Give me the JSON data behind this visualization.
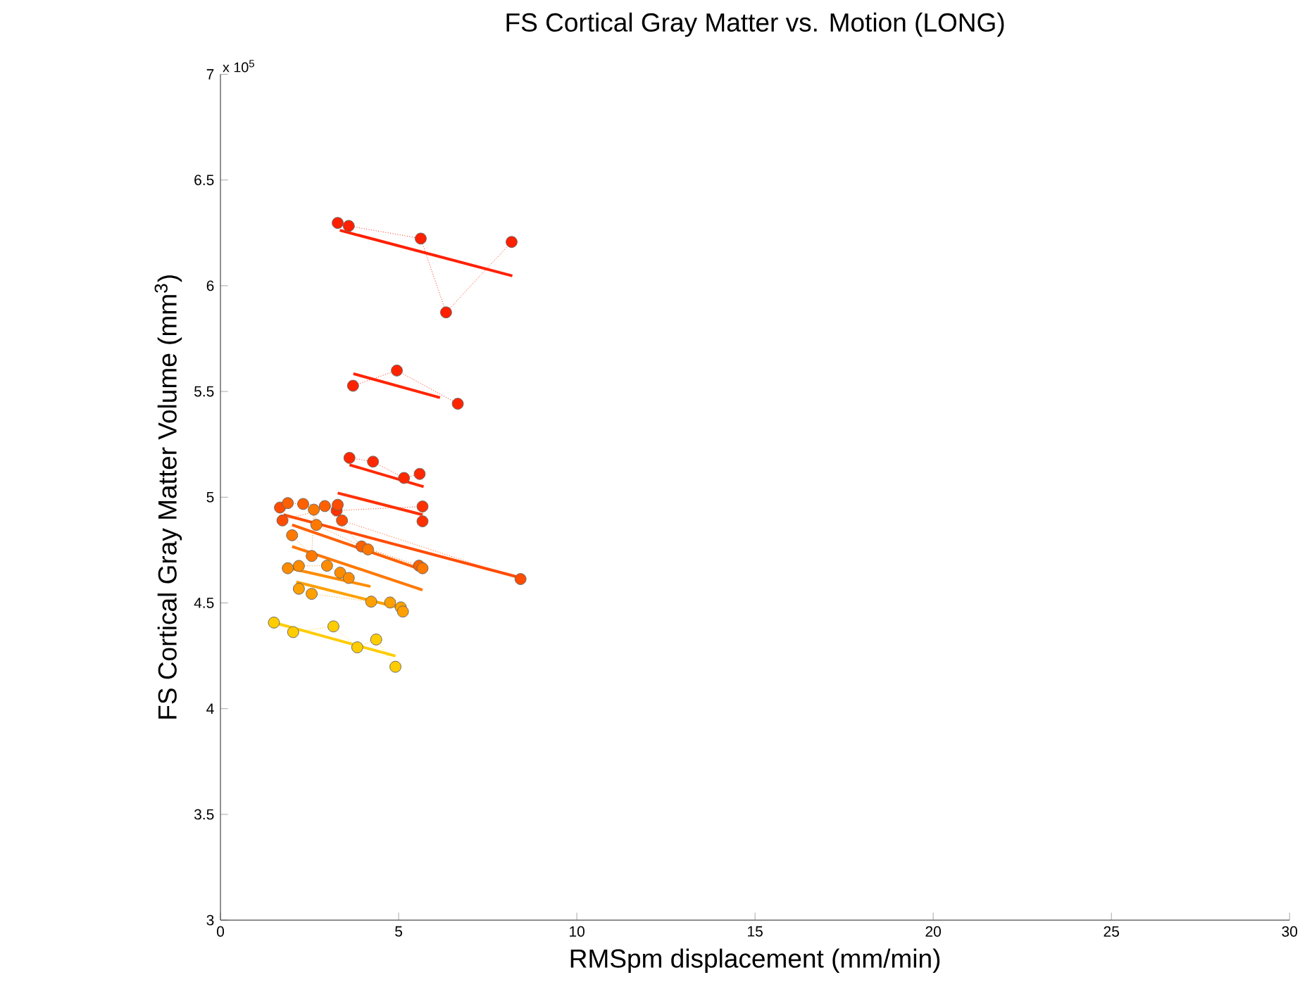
{
  "chart_data": {
    "type": "line",
    "title": "FS Cortical Gray Matter vs. Motion (LONG)",
    "xlabel": "RMSpm displacement (mm/min)",
    "ylabel": "FS Cortical Gray Matter Volume (mm$^{3}$)",
    "annotations": [
      "x 10$^{5}$"
    ],
    "xlim": [
      0,
      30
    ],
    "ylim": [
      3,
      7
    ],
    "xticks": [
      0,
      5,
      10,
      15,
      20,
      25,
      30
    ],
    "yticks": [
      3,
      3.5,
      4,
      4.5,
      5,
      5.5,
      6,
      6.5,
      7
    ],
    "grid": false,
    "series": [
      {
        "marker": "circle",
        "line_style": "dotted",
        "color": "#ff2000",
        "x": [
          3.29,
          3.6,
          5.62,
          6.33,
          8.17
        ],
        "values": [
          6.297,
          6.283,
          6.223,
          5.874,
          6.207
        ]
      },
      {
        "marker": "none",
        "line_style": "solid",
        "color": "#ff2000",
        "x": [
          3.35,
          8.19
        ],
        "values": [
          6.262,
          6.047
        ]
      },
      {
        "marker": "circle",
        "line_style": "dotted",
        "color": "#ff2400",
        "x": [
          3.72,
          4.95,
          6.66
        ],
        "values": [
          5.527,
          5.599,
          5.442
        ]
      },
      {
        "marker": "none",
        "line_style": "solid",
        "color": "#ff2400",
        "x": [
          3.73,
          6.16
        ],
        "values": [
          5.584,
          5.471
        ]
      },
      {
        "marker": "circle",
        "line_style": "dotted",
        "color": "#ff2800",
        "x": [
          3.62,
          4.28,
          5.15,
          5.59
        ],
        "values": [
          5.186,
          5.168,
          5.091,
          5.11
        ]
      },
      {
        "marker": "none",
        "line_style": "solid",
        "color": "#ff2800",
        "x": [
          3.62,
          5.7
        ],
        "values": [
          5.153,
          5.05
        ]
      },
      {
        "marker": "circle",
        "line_style": "dotted",
        "color": "#ff3000",
        "x": [
          3.26,
          5.67,
          5.67
        ],
        "values": [
          4.937,
          4.956,
          4.886
        ]
      },
      {
        "marker": "none",
        "line_style": "solid",
        "color": "#ff3000",
        "x": [
          3.29,
          5.67
        ],
        "values": [
          5.02,
          4.917
        ]
      },
      {
        "marker": "circle",
        "line_style": "dotted",
        "color": "#ff4c00",
        "x": [
          1.67,
          1.74,
          3.29,
          3.41,
          8.42
        ],
        "values": [
          4.951,
          4.89,
          4.964,
          4.89,
          4.613
        ]
      },
      {
        "marker": "none",
        "line_style": "solid",
        "color": "#ff4c00",
        "x": [
          1.77,
          8.42
        ],
        "values": [
          4.917,
          4.619
        ]
      },
      {
        "marker": "circle",
        "line_style": "dotted",
        "color": "#ff6000",
        "x": [
          1.89,
          2.32,
          2.93,
          3.96,
          5.57
        ],
        "values": [
          4.972,
          4.968,
          4.958,
          4.767,
          4.676
        ]
      },
      {
        "marker": "none",
        "line_style": "solid",
        "color": "#ff6000",
        "x": [
          2.01,
          5.61
        ],
        "values": [
          4.869,
          4.659
        ]
      },
      {
        "marker": "circle",
        "line_style": "dotted",
        "color": "#ff7800",
        "x": [
          2.01,
          2.56,
          2.62,
          2.69,
          4.14,
          5.67
        ],
        "values": [
          4.82,
          4.722,
          4.941,
          4.869,
          4.753,
          4.664
        ]
      },
      {
        "marker": "none",
        "line_style": "solid",
        "color": "#ff7800",
        "x": [
          2.01,
          5.67
        ],
        "values": [
          4.767,
          4.561
        ]
      },
      {
        "marker": "circle",
        "line_style": "dotted",
        "color": "#ff8c00",
        "x": [
          1.89,
          2.2,
          2.99,
          3.36,
          3.6
        ],
        "values": [
          4.664,
          4.675,
          4.676,
          4.643,
          4.618
        ]
      },
      {
        "marker": "none",
        "line_style": "solid",
        "color": "#ff8c00",
        "x": [
          1.95,
          4.21
        ],
        "values": [
          4.664,
          4.578
        ]
      },
      {
        "marker": "circle",
        "line_style": "dotted",
        "color": "#ffa000",
        "x": [
          2.2,
          2.56,
          4.23,
          4.76,
          5.06,
          5.12
        ],
        "values": [
          4.567,
          4.543,
          4.506,
          4.502,
          4.479,
          4.459
        ]
      },
      {
        "marker": "none",
        "line_style": "solid",
        "color": "#ffa000",
        "x": [
          2.13,
          5.06
        ],
        "values": [
          4.599,
          4.476
        ]
      },
      {
        "marker": "circle",
        "line_style": "dotted",
        "color": "#ffcc00",
        "x": [
          1.5,
          2.04,
          3.17,
          3.84,
          4.37,
          4.91
        ],
        "values": [
          4.407,
          4.362,
          4.389,
          4.29,
          4.327,
          4.198
        ]
      },
      {
        "marker": "none",
        "line_style": "solid",
        "color": "#ffcc00",
        "x": [
          1.5,
          4.91
        ],
        "values": [
          4.407,
          4.249
        ]
      }
    ]
  }
}
